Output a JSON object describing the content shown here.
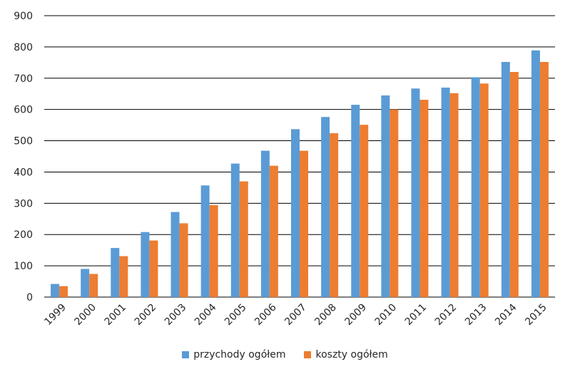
{
  "chart_data": {
    "type": "bar",
    "categories": [
      "1999",
      "2000",
      "2001",
      "2002",
      "2003",
      "2004",
      "2005",
      "2006",
      "2007",
      "2008",
      "2009",
      "2010",
      "2011",
      "2012",
      "2013",
      "2014",
      "2015"
    ],
    "series": [
      {
        "name": "przychody ogółem",
        "color": "#5B9BD5",
        "values": [
          42,
          90,
          157,
          208,
          272,
          357,
          427,
          468,
          537,
          576,
          615,
          645,
          667,
          670,
          703,
          752,
          789
        ]
      },
      {
        "name": "koszty ogółem",
        "color": "#ED7D31",
        "values": [
          35,
          74,
          131,
          181,
          236,
          294,
          370,
          420,
          468,
          524,
          551,
          600,
          631,
          652,
          683,
          720,
          752
        ]
      }
    ],
    "ylim": [
      0,
      900
    ],
    "yticks": [
      "0",
      "100",
      "200",
      "300",
      "400",
      "500",
      "600",
      "700",
      "800",
      "900"
    ],
    "grid": true,
    "legend_position": "bottom"
  }
}
